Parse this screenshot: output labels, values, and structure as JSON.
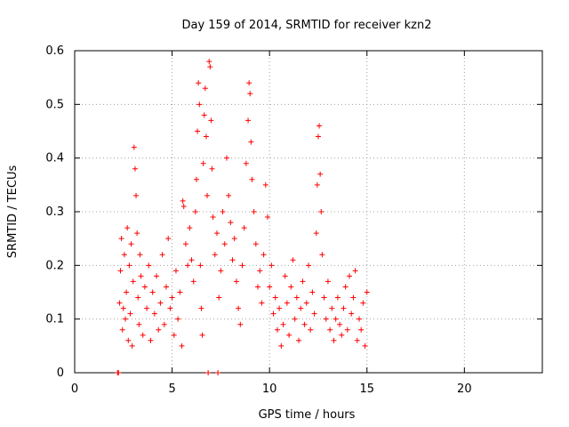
{
  "chart_data": {
    "type": "scatter",
    "title": "Day 159 of 2014, SRMTID for receiver kzn2",
    "xlabel": "GPS time / hours",
    "ylabel": "SRMTID / TECUs",
    "xlim": [
      0,
      24
    ],
    "ylim": [
      0,
      0.6
    ],
    "x_ticks": [
      0,
      5,
      10,
      15,
      20
    ],
    "x_tick_labels": [
      "0",
      "5",
      "10",
      "15",
      "20"
    ],
    "y_ticks": [
      0,
      0.1,
      0.2,
      0.3,
      0.4,
      0.5,
      0.6
    ],
    "y_tick_labels": [
      "0",
      "0.1",
      "0.2",
      "0.3",
      "0.4",
      "0.5",
      "0.6"
    ],
    "grid": true,
    "marker": "+",
    "color": "#ff0000",
    "series": [
      {
        "name": "SRMTID",
        "points": [
          [
            2.2,
            0.0
          ],
          [
            2.25,
            0.0
          ],
          [
            2.3,
            0.13
          ],
          [
            2.35,
            0.19
          ],
          [
            2.4,
            0.25
          ],
          [
            2.45,
            0.08
          ],
          [
            2.5,
            0.12
          ],
          [
            2.55,
            0.22
          ],
          [
            2.6,
            0.1
          ],
          [
            2.65,
            0.15
          ],
          [
            2.7,
            0.27
          ],
          [
            2.75,
            0.06
          ],
          [
            2.8,
            0.2
          ],
          [
            2.85,
            0.11
          ],
          [
            2.9,
            0.24
          ],
          [
            2.95,
            0.05
          ],
          [
            3.0,
            0.17
          ],
          [
            3.05,
            0.42
          ],
          [
            3.1,
            0.38
          ],
          [
            3.15,
            0.33
          ],
          [
            3.2,
            0.26
          ],
          [
            3.25,
            0.14
          ],
          [
            3.3,
            0.09
          ],
          [
            3.35,
            0.22
          ],
          [
            3.4,
            0.18
          ],
          [
            3.5,
            0.07
          ],
          [
            3.6,
            0.16
          ],
          [
            3.7,
            0.12
          ],
          [
            3.8,
            0.2
          ],
          [
            3.9,
            0.06
          ],
          [
            4.0,
            0.15
          ],
          [
            4.1,
            0.11
          ],
          [
            4.2,
            0.18
          ],
          [
            4.3,
            0.08
          ],
          [
            4.4,
            0.13
          ],
          [
            4.5,
            0.22
          ],
          [
            4.6,
            0.09
          ],
          [
            4.7,
            0.16
          ],
          [
            4.8,
            0.25
          ],
          [
            4.9,
            0.12
          ],
          [
            5.0,
            0.14
          ],
          [
            5.1,
            0.07
          ],
          [
            5.2,
            0.19
          ],
          [
            5.3,
            0.1
          ],
          [
            5.4,
            0.15
          ],
          [
            5.5,
            0.05
          ],
          [
            5.55,
            0.32
          ],
          [
            5.6,
            0.31
          ],
          [
            5.7,
            0.24
          ],
          [
            5.8,
            0.2
          ],
          [
            5.9,
            0.27
          ],
          [
            6.0,
            0.21
          ],
          [
            6.1,
            0.17
          ],
          [
            6.2,
            0.3
          ],
          [
            6.25,
            0.36
          ],
          [
            6.3,
            0.45
          ],
          [
            6.35,
            0.54
          ],
          [
            6.4,
            0.5
          ],
          [
            6.45,
            0.2
          ],
          [
            6.5,
            0.12
          ],
          [
            6.55,
            0.07
          ],
          [
            6.6,
            0.39
          ],
          [
            6.65,
            0.48
          ],
          [
            6.7,
            0.53
          ],
          [
            6.75,
            0.44
          ],
          [
            6.8,
            0.33
          ],
          [
            6.85,
            0.0
          ],
          [
            6.9,
            0.58
          ],
          [
            6.95,
            0.57
          ],
          [
            7.0,
            0.47
          ],
          [
            7.05,
            0.38
          ],
          [
            7.1,
            0.29
          ],
          [
            7.2,
            0.22
          ],
          [
            7.3,
            0.26
          ],
          [
            7.35,
            0.0
          ],
          [
            7.4,
            0.14
          ],
          [
            7.5,
            0.19
          ],
          [
            7.6,
            0.3
          ],
          [
            7.7,
            0.24
          ],
          [
            7.8,
            0.4
          ],
          [
            7.9,
            0.33
          ],
          [
            8.0,
            0.28
          ],
          [
            8.1,
            0.21
          ],
          [
            8.2,
            0.25
          ],
          [
            8.3,
            0.17
          ],
          [
            8.4,
            0.12
          ],
          [
            8.5,
            0.09
          ],
          [
            8.6,
            0.2
          ],
          [
            8.7,
            0.27
          ],
          [
            8.8,
            0.39
          ],
          [
            8.9,
            0.47
          ],
          [
            8.95,
            0.54
          ],
          [
            9.0,
            0.52
          ],
          [
            9.05,
            0.43
          ],
          [
            9.1,
            0.36
          ],
          [
            9.2,
            0.3
          ],
          [
            9.3,
            0.24
          ],
          [
            9.4,
            0.16
          ],
          [
            9.5,
            0.19
          ],
          [
            9.6,
            0.13
          ],
          [
            9.7,
            0.22
          ],
          [
            9.8,
            0.35
          ],
          [
            9.9,
            0.29
          ],
          [
            10.0,
            0.16
          ],
          [
            10.1,
            0.2
          ],
          [
            10.2,
            0.11
          ],
          [
            10.3,
            0.14
          ],
          [
            10.4,
            0.08
          ],
          [
            10.5,
            0.12
          ],
          [
            10.6,
            0.05
          ],
          [
            10.7,
            0.09
          ],
          [
            10.8,
            0.18
          ],
          [
            10.9,
            0.13
          ],
          [
            11.0,
            0.07
          ],
          [
            11.1,
            0.16
          ],
          [
            11.2,
            0.21
          ],
          [
            11.3,
            0.1
          ],
          [
            11.4,
            0.14
          ],
          [
            11.5,
            0.06
          ],
          [
            11.6,
            0.12
          ],
          [
            11.7,
            0.17
          ],
          [
            11.8,
            0.09
          ],
          [
            11.9,
            0.13
          ],
          [
            12.0,
            0.2
          ],
          [
            12.1,
            0.08
          ],
          [
            12.2,
            0.15
          ],
          [
            12.3,
            0.11
          ],
          [
            12.4,
            0.26
          ],
          [
            12.45,
            0.35
          ],
          [
            12.5,
            0.44
          ],
          [
            12.55,
            0.46
          ],
          [
            12.6,
            0.37
          ],
          [
            12.65,
            0.3
          ],
          [
            12.7,
            0.22
          ],
          [
            12.8,
            0.14
          ],
          [
            12.9,
            0.1
          ],
          [
            13.0,
            0.17
          ],
          [
            13.1,
            0.08
          ],
          [
            13.2,
            0.12
          ],
          [
            13.3,
            0.06
          ],
          [
            13.4,
            0.1
          ],
          [
            13.5,
            0.14
          ],
          [
            13.6,
            0.09
          ],
          [
            13.7,
            0.07
          ],
          [
            13.8,
            0.12
          ],
          [
            13.9,
            0.16
          ],
          [
            14.0,
            0.08
          ],
          [
            14.1,
            0.18
          ],
          [
            14.2,
            0.11
          ],
          [
            14.3,
            0.14
          ],
          [
            14.4,
            0.19
          ],
          [
            14.5,
            0.06
          ],
          [
            14.6,
            0.1
          ],
          [
            14.7,
            0.08
          ],
          [
            14.8,
            0.13
          ],
          [
            14.9,
            0.05
          ],
          [
            15.0,
            0.15
          ]
        ]
      }
    ]
  }
}
